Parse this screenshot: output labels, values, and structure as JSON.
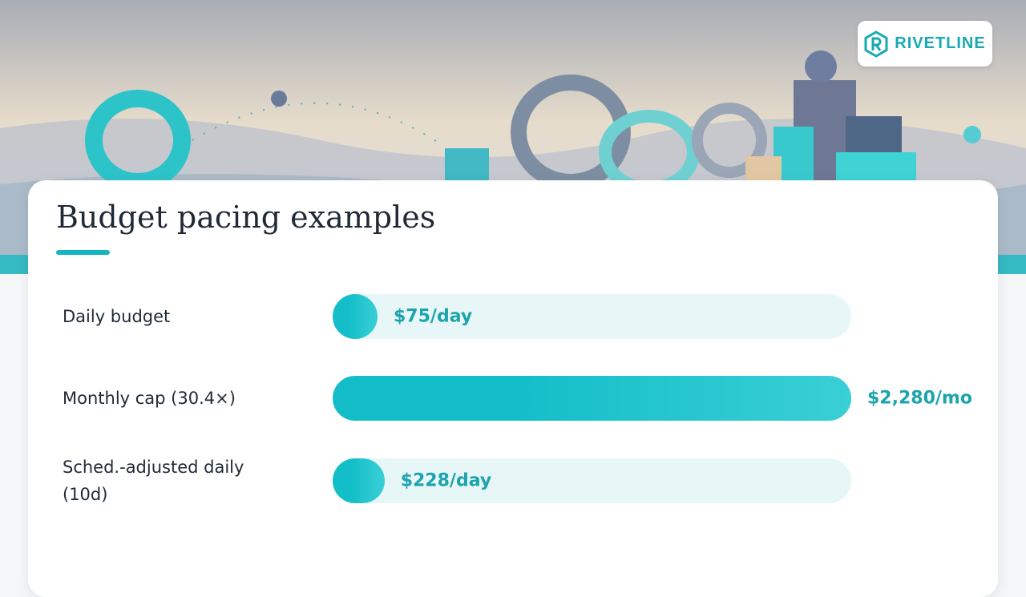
{
  "brand": "RIVETLINE",
  "chart_data": {
    "type": "bar",
    "orientation": "horizontal",
    "title": "Budget pacing examples",
    "categories": [
      "Daily budget",
      "Monthly cap (30.4×)",
      "Sched.-adjusted daily (10d)"
    ],
    "values": [
      75,
      2280,
      228
    ],
    "value_labels": [
      "$75/day",
      "$2,280/mo",
      "$228/day"
    ],
    "color": "#13bec8"
  }
}
